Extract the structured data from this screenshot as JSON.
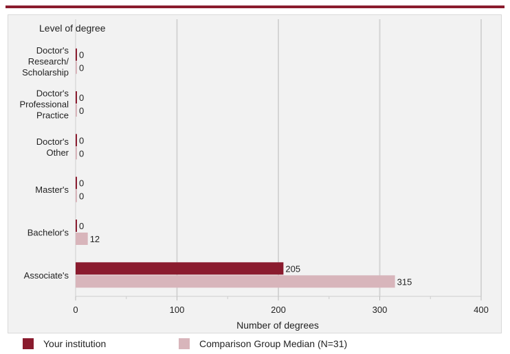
{
  "colors": {
    "accent": "#8a1b2e",
    "your_institution": "#8a1b2e",
    "comparison": "#d8b5bb",
    "grid": "#d4d4d4",
    "frame_bg": "#f2f2f2"
  },
  "chart_data": {
    "type": "bar",
    "orientation": "horizontal",
    "title": "Level of degree",
    "xlabel": "Number of degrees",
    "categories": [
      [
        "Doctor's",
        "Research/",
        "Scholarship"
      ],
      [
        "Doctor's",
        "Professional",
        "Practice"
      ],
      [
        "Doctor's",
        "Other"
      ],
      [
        "Master's"
      ],
      [
        "Bachelor's"
      ],
      [
        "Associate's"
      ]
    ],
    "series": [
      {
        "name": "Your institution",
        "values": [
          0,
          0,
          0,
          0,
          0,
          205
        ]
      },
      {
        "name": "Comparison Group Median (N=31)",
        "values": [
          0,
          0,
          0,
          0,
          12,
          315
        ]
      }
    ],
    "xlim": [
      0,
      400
    ],
    "xticks": [
      0,
      100,
      200,
      300,
      400
    ],
    "grid": true,
    "legend_position": "bottom"
  }
}
